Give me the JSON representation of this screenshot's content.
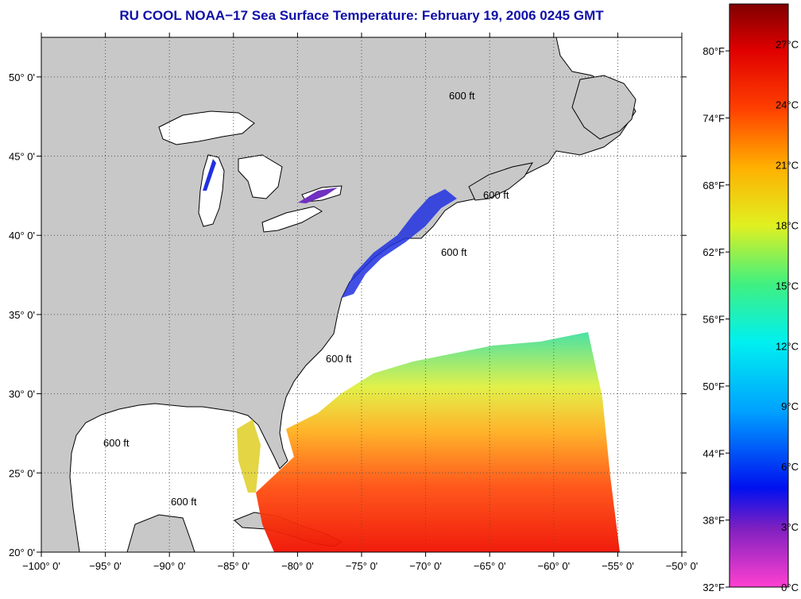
{
  "title": "RU COOL  NOAA−17  Sea Surface Temperature:  February 19, 2006 0245 GMT",
  "map": {
    "lon_range": [
      -100,
      -50
    ],
    "lat_range": [
      20,
      52.5
    ],
    "lon_ticks": [
      {
        "value": -100,
        "label": "−100° 0'"
      },
      {
        "value": -95,
        "label": "−95° 0'"
      },
      {
        "value": -90,
        "label": "−90° 0'"
      },
      {
        "value": -85,
        "label": "−85° 0'"
      },
      {
        "value": -80,
        "label": "−80° 0'"
      },
      {
        "value": -75,
        "label": "−75° 0'"
      },
      {
        "value": -70,
        "label": "−70° 0'"
      },
      {
        "value": -65,
        "label": "−65° 0'"
      },
      {
        "value": -60,
        "label": "−60° 0'"
      },
      {
        "value": -55,
        "label": "−55° 0'"
      },
      {
        "value": -50,
        "label": "−50° 0'"
      }
    ],
    "lat_ticks": [
      {
        "value": 20,
        "label": "20° 0'"
      },
      {
        "value": 25,
        "label": "25° 0'"
      },
      {
        "value": 30,
        "label": "30° 0'"
      },
      {
        "value": 35,
        "label": "35° 0'"
      },
      {
        "value": 40,
        "label": "40° 0'"
      },
      {
        "value": 45,
        "label": "45° 0'"
      },
      {
        "value": 50,
        "label": "50° 0'"
      }
    ],
    "isobath_label": "600 ft",
    "colors": {
      "land": "#c8c8c8",
      "ocean": "#ffffff",
      "grid": "#555555"
    }
  },
  "colorbar": {
    "celsius_range": [
      0,
      29
    ],
    "fahrenheit_labels": [
      {
        "value": 32,
        "label": "32°F"
      },
      {
        "value": 38,
        "label": "38°F"
      },
      {
        "value": 44,
        "label": "44°F"
      },
      {
        "value": 50,
        "label": "50°F"
      },
      {
        "value": 56,
        "label": "56°F"
      },
      {
        "value": 62,
        "label": "62°F"
      },
      {
        "value": 68,
        "label": "68°F"
      },
      {
        "value": 74,
        "label": "74°F"
      },
      {
        "value": 80,
        "label": "80°F"
      }
    ],
    "celsius_labels": [
      {
        "value": 0,
        "label": "0°C"
      },
      {
        "value": 3,
        "label": "3°C"
      },
      {
        "value": 6,
        "label": "6°C"
      },
      {
        "value": 9,
        "label": "9°C"
      },
      {
        "value": 12,
        "label": "12°C"
      },
      {
        "value": 15,
        "label": "15°C"
      },
      {
        "value": 18,
        "label": "18°C"
      },
      {
        "value": 21,
        "label": "21°C"
      },
      {
        "value": 24,
        "label": "24°C"
      },
      {
        "value": 27,
        "label": "27°C"
      }
    ],
    "color_stops": [
      "#ff40d0",
      "#8020c0",
      "#0010f0",
      "#00a0ff",
      "#00f0f0",
      "#40f080",
      "#e0f020",
      "#ffb000",
      "#ff4000",
      "#e00000",
      "#800000"
    ]
  }
}
